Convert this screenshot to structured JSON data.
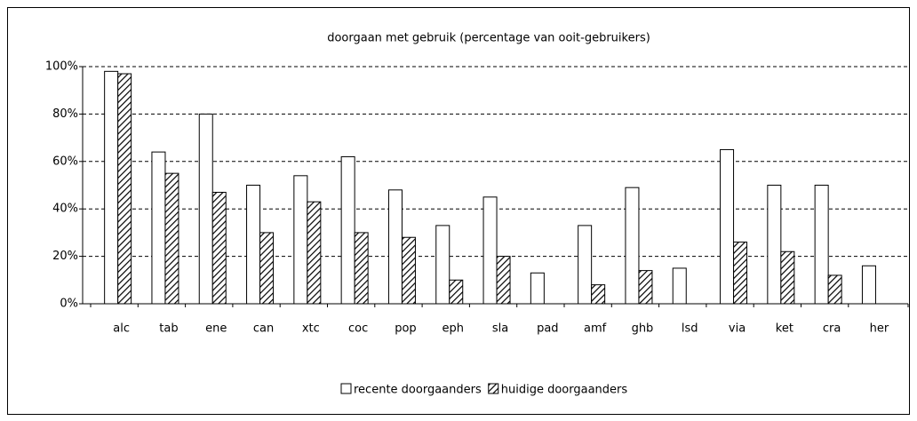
{
  "chart_data": {
    "type": "bar",
    "title": "doorgaan met gebruik (percentage van ooit-gebruikers)",
    "categories": [
      "alc",
      "tab",
      "ene",
      "can",
      "xtc",
      "coc",
      "pop",
      "eph",
      "sla",
      "pad",
      "amf",
      "ghb",
      "lsd",
      "via",
      "ket",
      "cra",
      "her"
    ],
    "series": [
      {
        "name": "recente doorgaanders",
        "color": "#ffffff",
        "values": [
          98,
          64,
          80,
          50,
          54,
          62,
          48,
          33,
          45,
          13,
          33,
          49,
          15,
          65,
          50,
          50,
          16
        ]
      },
      {
        "name": "huidige doorgaanders",
        "color": "#000000",
        "pattern": "hatch",
        "values": [
          97,
          55,
          47,
          30,
          43,
          30,
          28,
          10,
          20,
          0,
          8,
          14,
          0,
          26,
          22,
          12,
          0
        ]
      }
    ],
    "ylim": [
      0,
      100
    ],
    "yticks": [
      {
        "value": 0,
        "label": "0%"
      },
      {
        "value": 20,
        "label": "20%"
      },
      {
        "value": 40,
        "label": "40%"
      },
      {
        "value": 60,
        "label": "60%"
      },
      {
        "value": 80,
        "label": "80%"
      },
      {
        "value": 100,
        "label": "100%"
      }
    ],
    "grid": true,
    "legend": "bottom"
  }
}
